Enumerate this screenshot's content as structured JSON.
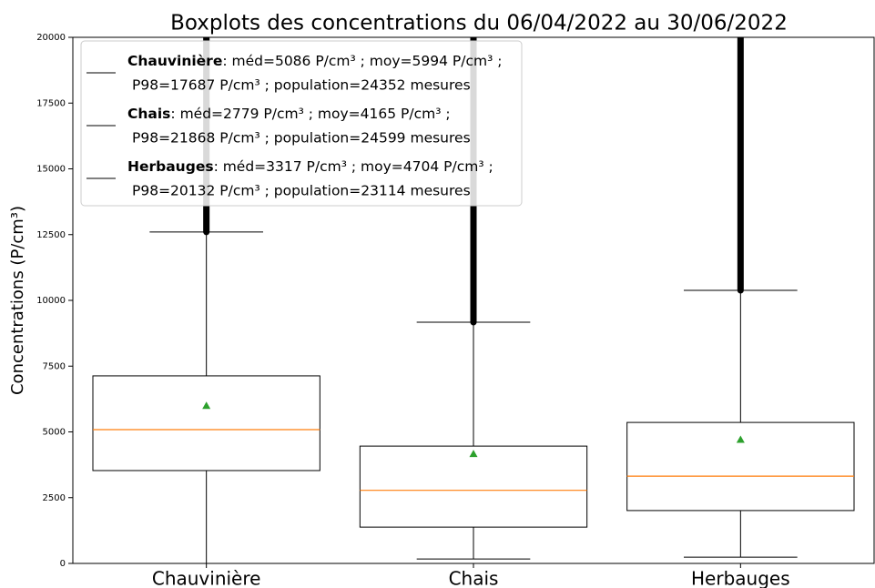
{
  "chart_data": {
    "type": "boxplot",
    "title": "Boxplots des concentrations du 06/04/2022 au 30/06/2022",
    "ylabel": "Concentrations (P/cm³)",
    "categories": [
      "Chauvinière",
      "Chais",
      "Herbauges"
    ],
    "boxes": [
      {
        "whislo": 0,
        "q1": 3530,
        "med": 5086,
        "q3": 7130,
        "whishi": 12600,
        "mean": 5994,
        "legend_lines": [
          ": méd=5086 P/cm³ ; moy=5994 P/cm³ ;",
          "P98=17687 P/cm³ ; population=24352 mesures"
        ]
      },
      {
        "whislo": 170,
        "q1": 1380,
        "med": 2779,
        "q3": 4460,
        "whishi": 9170,
        "mean": 4165,
        "legend_lines": [
          ": méd=2779 P/cm³ ; moy=4165 P/cm³ ;",
          "P98=21868 P/cm³ ; population=24599 mesures"
        ]
      },
      {
        "whislo": 240,
        "q1": 2010,
        "med": 3317,
        "q3": 5360,
        "whishi": 10380,
        "mean": 4704,
        "legend_lines": [
          ": méd=3317 P/cm³ ; moy=4704 P/cm³ ;",
          "P98=20132 P/cm³ ; population=23114 mesures"
        ]
      }
    ],
    "median_color": "#ff7f0e",
    "mean_color": "#2ca02c",
    "box_color": "#000000",
    "ylim": [
      0,
      20000
    ],
    "yticks": [
      0,
      2500,
      5000,
      7500,
      10000,
      12500,
      15000,
      17500,
      20000
    ],
    "legend": "upper left"
  }
}
